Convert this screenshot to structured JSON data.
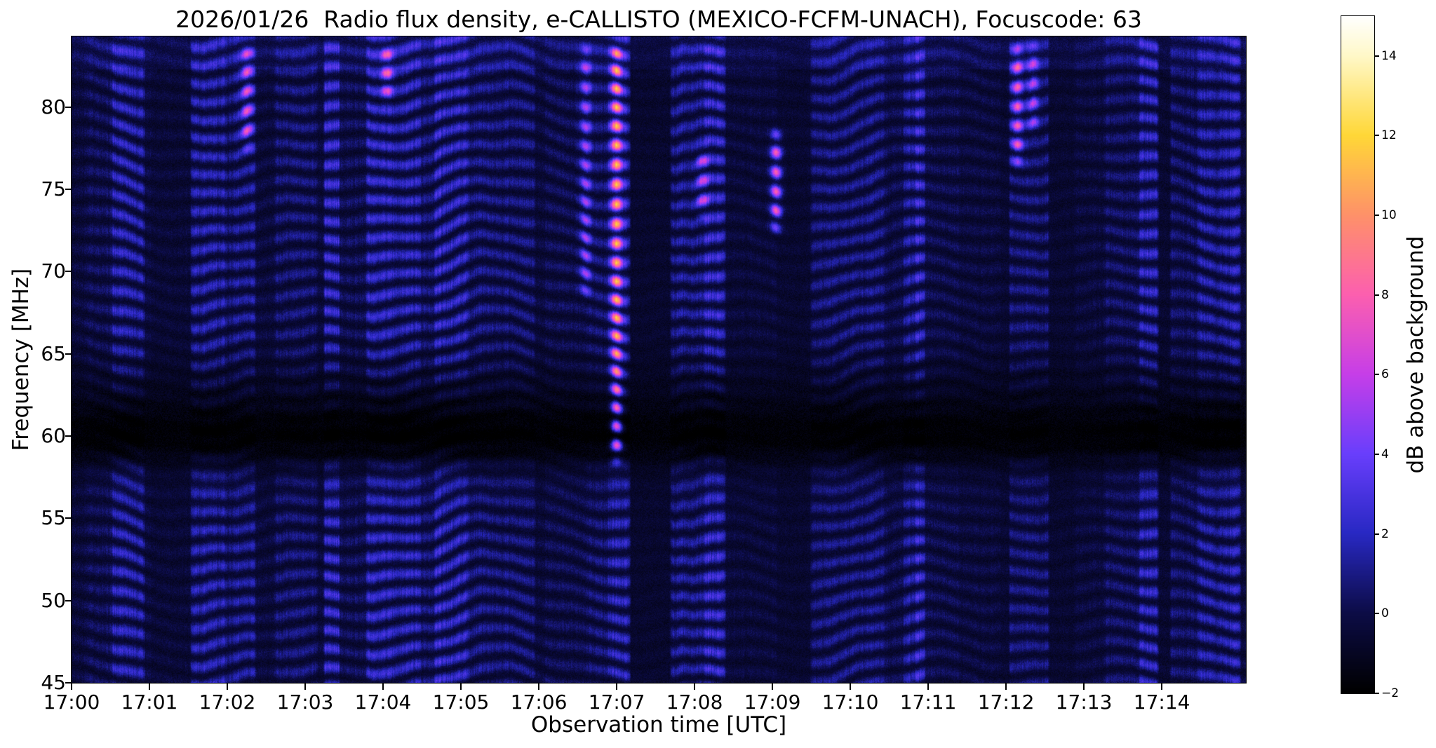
{
  "chart_data": {
    "type": "heatmap",
    "title": "2026/01/26  Radio flux density, e-CALLISTO (MEXICO-FCFM-UNACH), Focuscode: 63",
    "xlabel": "Observation time [UTC]",
    "ylabel": "Frequency [MHz]",
    "colorbar_label": "dB above background",
    "x_tick_labels": [
      "17:00",
      "17:01",
      "17:02",
      "17:03",
      "17:04",
      "17:05",
      "17:06",
      "17:07",
      "17:08",
      "17:09",
      "17:10",
      "17:11",
      "17:12",
      "17:13",
      "17:14"
    ],
    "x_range": {
      "start_minute": 0,
      "end_minute": 15.08,
      "tick_interval_minutes": 1
    },
    "y_tick_values": [
      45,
      50,
      55,
      60,
      65,
      70,
      75,
      80
    ],
    "y_range_mhz": [
      45,
      84.3
    ],
    "colorbar": {
      "vmin": -2,
      "vmax": 15,
      "tick_values": [
        -2,
        0,
        2,
        4,
        6,
        8,
        10,
        12,
        14
      ]
    },
    "colormap_stops": [
      {
        "value": -2,
        "color": "#000000"
      },
      {
        "value": 0,
        "color": "#0c0c46"
      },
      {
        "value": 2,
        "color": "#2828c3"
      },
      {
        "value": 4,
        "color": "#693efc"
      },
      {
        "value": 6,
        "color": "#c63ee8"
      },
      {
        "value": 8,
        "color": "#fc5faf"
      },
      {
        "value": 10,
        "color": "#fe9169"
      },
      {
        "value": 12,
        "color": "#ffd737"
      },
      {
        "value": 14,
        "color": "#fff8c8"
      },
      {
        "value": 15,
        "color": "#ffffff"
      }
    ],
    "content_summary": {
      "background_level_db_range": [
        -2,
        4
      ],
      "pattern": "Mostly dark blue dynamic spectrum with vertical minute-scale bands of varying brightness, wavy horizontal ionospheric striations, a dark horizontal band near 59-61 MHz and a brighter band near 57-58 MHz",
      "bright_features": [
        {
          "time_minute": 2.25,
          "freq_range_mhz": [
            77,
            84.3
          ],
          "peak_db": 6
        },
        {
          "time_minute": 4.05,
          "freq_range_mhz": [
            80,
            84.3
          ],
          "peak_db": 6
        },
        {
          "time_minute": 6.6,
          "freq_range_mhz": [
            68,
            84.3
          ],
          "peak_db": 5
        },
        {
          "time_minute": 7.0,
          "freq_range_mhz": [
            58,
            84.3
          ],
          "peak_db": 9
        },
        {
          "time_minute": 8.1,
          "freq_range_mhz": [
            73,
            78
          ],
          "peak_db": 5
        },
        {
          "time_minute": 9.05,
          "freq_range_mhz": [
            72,
            79
          ],
          "peak_db": 8
        },
        {
          "time_minute": 12.15,
          "freq_range_mhz": [
            76,
            84.3
          ],
          "peak_db": 7
        },
        {
          "time_minute": 12.35,
          "freq_range_mhz": [
            78,
            84.3
          ],
          "peak_db": 5
        }
      ]
    }
  }
}
